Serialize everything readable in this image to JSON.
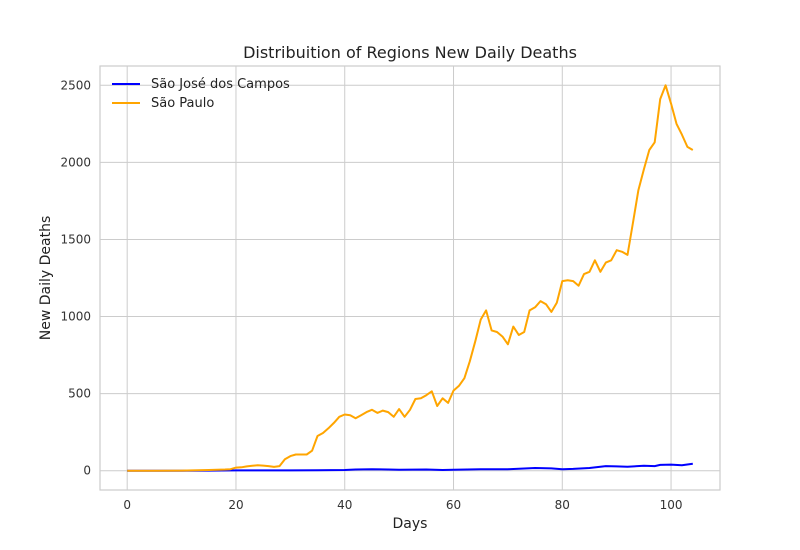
{
  "chart_data": {
    "type": "line",
    "title": "Distribuition of Regions New Daily Deaths",
    "xlabel": "Days",
    "ylabel": "New Daily Deaths",
    "xlim": [
      -5,
      109
    ],
    "ylim": [
      -125,
      2625
    ],
    "x_ticks": [
      0,
      20,
      40,
      60,
      80,
      100
    ],
    "y_ticks": [
      0,
      500,
      1000,
      1500,
      2000,
      2500
    ],
    "grid": true,
    "legend_position": "top-left",
    "series": [
      {
        "name": "São José dos Campos",
        "color": "#0000ff",
        "x": [
          0,
          10,
          15,
          20,
          25,
          30,
          35,
          40,
          42,
          45,
          48,
          50,
          55,
          58,
          60,
          65,
          70,
          75,
          78,
          80,
          82,
          85,
          88,
          90,
          92,
          95,
          97,
          98,
          100,
          102,
          104
        ],
        "y": [
          0,
          0,
          1,
          2,
          2,
          2,
          3,
          5,
          8,
          10,
          8,
          6,
          8,
          5,
          6,
          10,
          10,
          18,
          15,
          10,
          12,
          18,
          30,
          28,
          26,
          32,
          30,
          38,
          40,
          36,
          45
        ]
      },
      {
        "name": "São Paulo",
        "color": "#ffa500",
        "x": [
          0,
          5,
          10,
          15,
          18,
          19,
          20,
          21,
          22,
          23,
          24,
          25,
          26,
          27,
          28,
          29,
          30,
          31,
          32,
          33,
          34,
          35,
          36,
          37,
          38,
          39,
          40,
          41,
          42,
          43,
          44,
          45,
          46,
          47,
          48,
          49,
          50,
          51,
          52,
          53,
          54,
          55,
          56,
          57,
          58,
          59,
          60,
          61,
          62,
          63,
          64,
          65,
          66,
          67,
          68,
          69,
          70,
          71,
          72,
          73,
          74,
          75,
          76,
          77,
          78,
          79,
          80,
          81,
          82,
          83,
          84,
          85,
          86,
          87,
          88,
          89,
          90,
          91,
          92,
          93,
          94,
          95,
          96,
          97,
          98,
          99,
          100,
          101,
          102,
          103,
          104
        ],
        "y": [
          0,
          0,
          1,
          5,
          8,
          10,
          20,
          22,
          28,
          32,
          35,
          33,
          30,
          25,
          30,
          75,
          95,
          105,
          105,
          105,
          130,
          225,
          245,
          275,
          310,
          350,
          365,
          360,
          340,
          360,
          380,
          395,
          375,
          390,
          380,
          350,
          400,
          350,
          395,
          465,
          470,
          490,
          515,
          420,
          470,
          440,
          520,
          550,
          600,
          710,
          840,
          980,
          1040,
          910,
          900,
          870,
          820,
          935,
          880,
          900,
          1040,
          1060,
          1100,
          1080,
          1030,
          1090,
          1230,
          1235,
          1230,
          1200,
          1275,
          1290,
          1365,
          1290,
          1350,
          1365,
          1430,
          1420,
          1400,
          1610,
          1820,
          1955,
          2080,
          2130,
          2410,
          2500,
          2380,
          2250,
          2180,
          2100,
          2080
        ]
      }
    ]
  }
}
